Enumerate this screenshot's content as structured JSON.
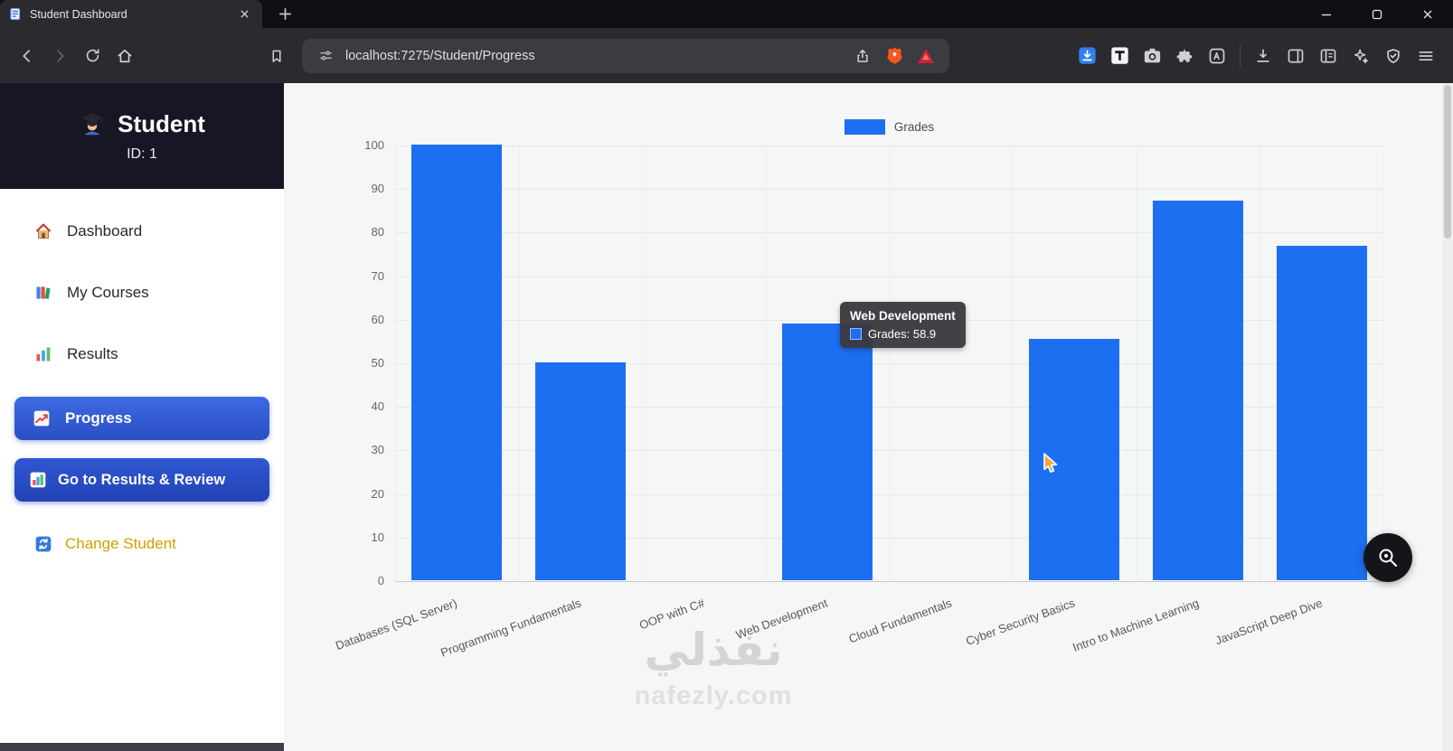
{
  "browser": {
    "tab_title": "Student Dashboard",
    "url": "localhost:7275/Student/Progress"
  },
  "sidebar": {
    "title": "Student",
    "student_id": "ID: 1",
    "items": [
      {
        "key": "dashboard",
        "label": "Dashboard",
        "active": false
      },
      {
        "key": "my-courses",
        "label": "My Courses",
        "active": false
      },
      {
        "key": "results",
        "label": "Results",
        "active": false
      },
      {
        "key": "progress",
        "label": "Progress",
        "active": true
      }
    ],
    "go_results_label": "Go to Results & Review",
    "change_student_label": "Change Student"
  },
  "chart_data": {
    "type": "bar",
    "title": "",
    "categories": [
      "Databases (SQL Server)",
      "Programming Fundamentals",
      "OOP with C#",
      "Web Development",
      "Cloud Fundamentals",
      "Cyber Security Basics",
      "Intro to Machine Learning",
      "JavaScript Deep Dive"
    ],
    "series": [
      {
        "name": "Grades",
        "values": [
          100,
          50,
          0,
          58.9,
          0,
          55.5,
          87.2,
          76.7
        ]
      }
    ],
    "ylim": [
      0,
      100
    ],
    "yticks": [
      0,
      10,
      20,
      30,
      40,
      50,
      60,
      70,
      80,
      90,
      100
    ],
    "bar_color": "#1d6ff1",
    "grid": true,
    "legend_position": "top-center"
  },
  "tooltip": {
    "title": "Web Development",
    "label": "Grades: 58.9"
  },
  "watermark": {
    "arabic": "نفذلي",
    "latin": "nafezly.com"
  },
  "colors": {
    "bar": "#1d6ff1",
    "active_item_top": "#3e6ae3",
    "active_item_bottom": "#2a4fc4",
    "change_student_text": "#d39e00",
    "sidebar_header_bg": "#161625"
  }
}
